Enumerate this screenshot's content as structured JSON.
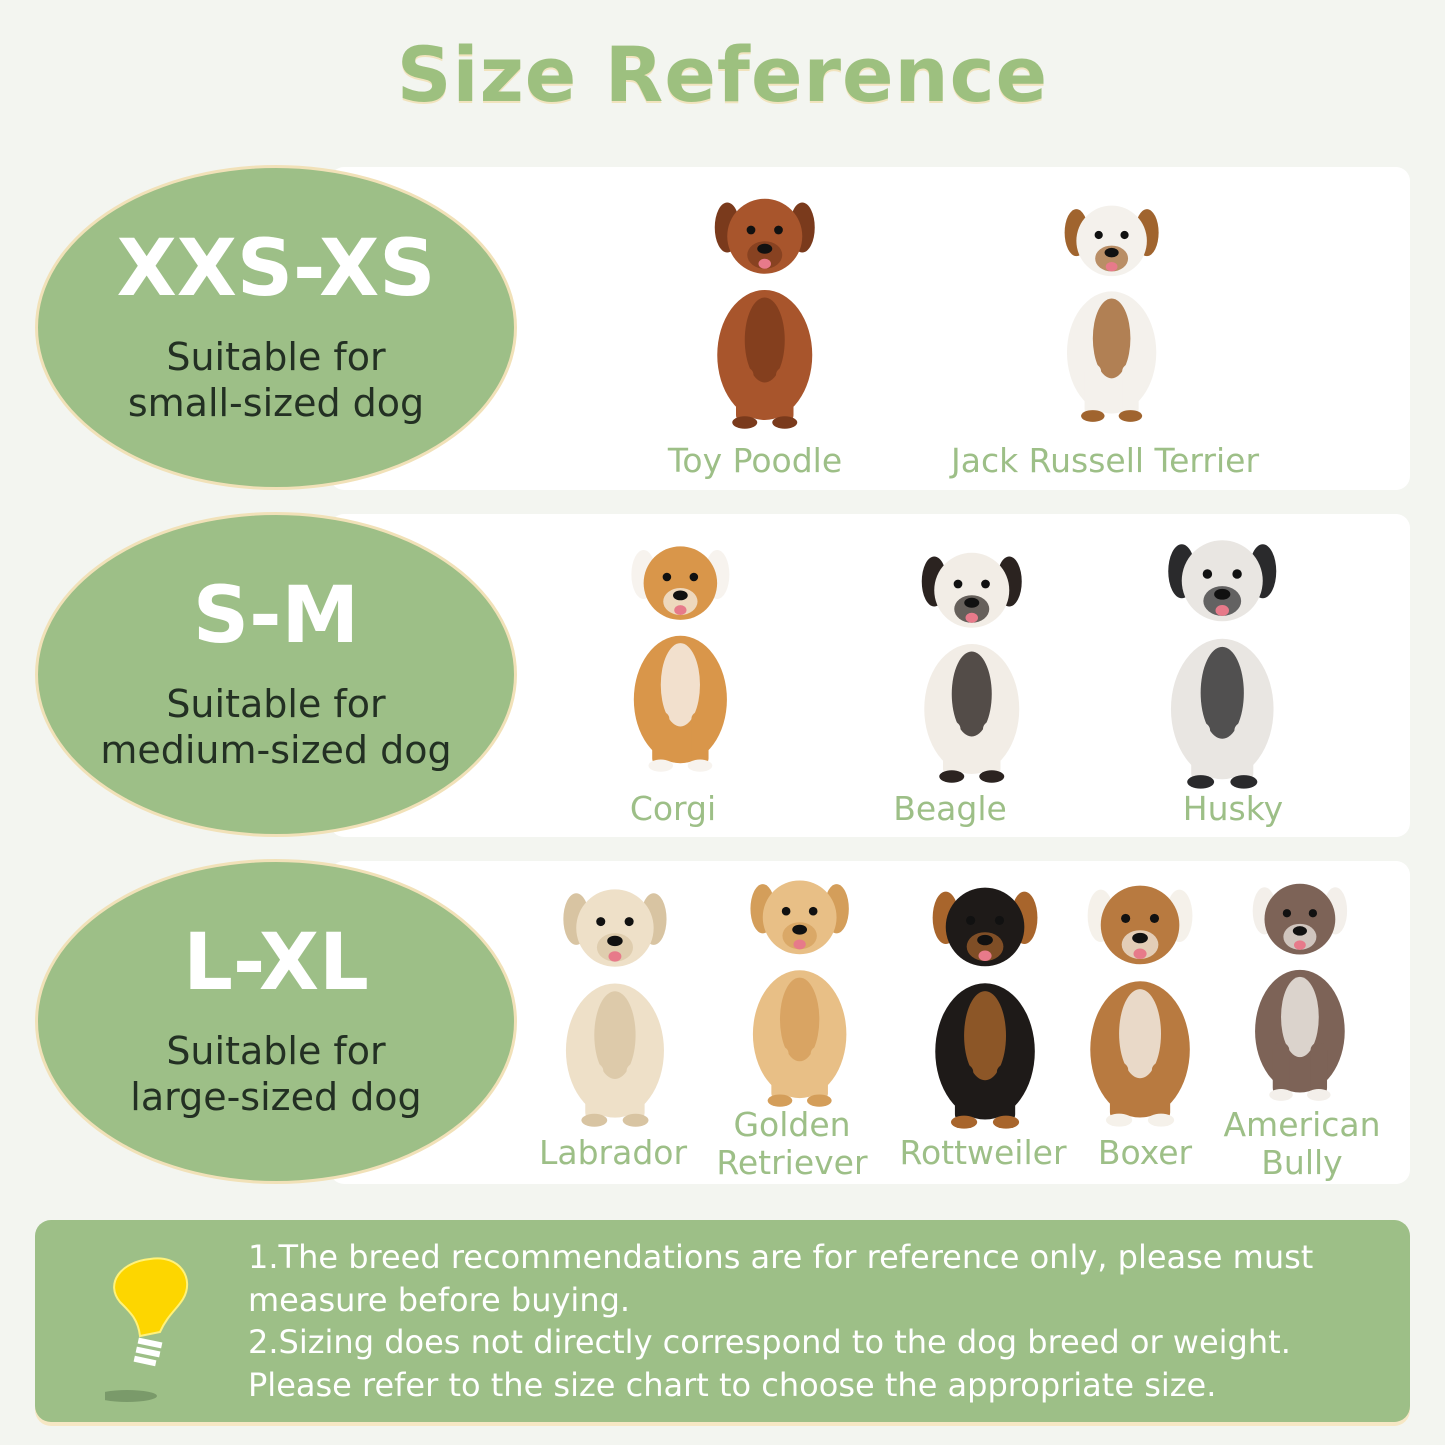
{
  "title": "Size Reference",
  "colors": {
    "accent_green": "#9dbf87",
    "title_green": "#9dc07f",
    "oval_border": "#f1e1b8",
    "bulb_yellow": "#fdd600"
  },
  "rows": [
    {
      "size": "XXS-XS",
      "desc_line1": "Suitable for",
      "desc_line2": "small-sized dog",
      "dogs": [
        {
          "name": "Toy Poodle",
          "coat": "#a8552c",
          "accent": "#7a3a1c"
        },
        {
          "name": "Jack Russell Terrier",
          "coat": "#f4f1ec",
          "accent": "#a0642e"
        }
      ]
    },
    {
      "size": "S-M",
      "desc_line1": "Suitable for",
      "desc_line2": "medium-sized dog",
      "dogs": [
        {
          "name": "Corgi",
          "coat": "#d9964a",
          "accent": "#f7f3ee"
        },
        {
          "name": "Beagle",
          "coat": "#f2ede6",
          "accent": "#2b2320"
        },
        {
          "name": "Husky",
          "coat": "#e9e6e2",
          "accent": "#2a2a2c"
        }
      ]
    },
    {
      "size": "L-XL",
      "desc_line1": "Suitable for",
      "desc_line2": "large-sized dog",
      "dogs": [
        {
          "name": "Labrador",
          "coat": "#eee0c8",
          "accent": "#d8c4a2"
        },
        {
          "name": "Golden Retriever",
          "name_line1": "Golden",
          "name_line2": "Retriever",
          "coat": "#e8bf86",
          "accent": "#d49e5a"
        },
        {
          "name": "Rottweiler",
          "coat": "#1e1a18",
          "accent": "#a8652c"
        },
        {
          "name": "Boxer",
          "coat": "#b87a40",
          "accent": "#f5f1ea"
        },
        {
          "name": "American Bully",
          "name_line1": "American",
          "name_line2": "Bully",
          "coat": "#7d6357",
          "accent": "#f3efea"
        }
      ]
    }
  ],
  "tips": {
    "line1": "1.The breed recommendations are for reference only, please must",
    "line2": "measure before buying.",
    "line3": "2.Sizing does not directly correspond to the dog breed or weight.",
    "line4": "Please refer to the size chart to choose the appropriate size."
  }
}
